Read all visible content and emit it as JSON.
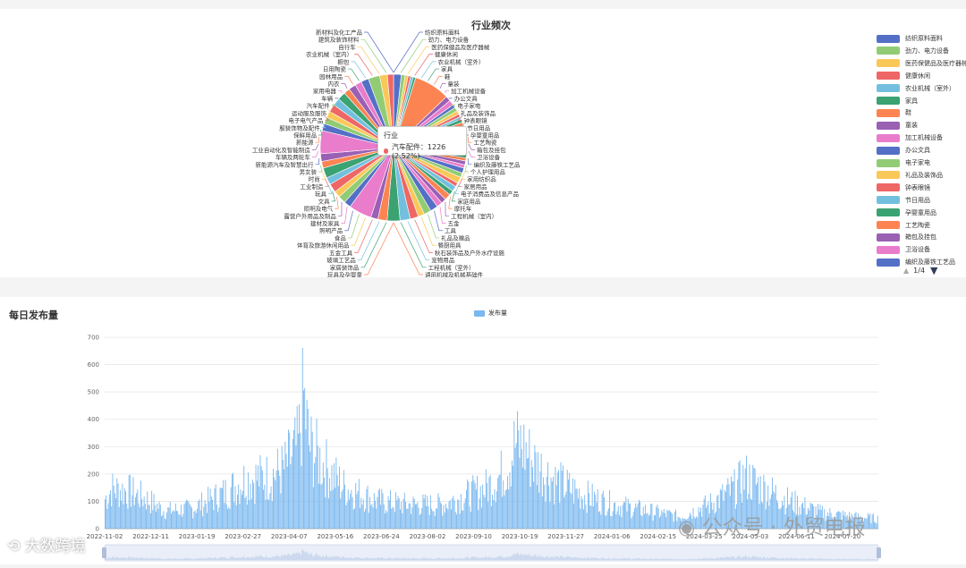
{
  "pie": {
    "title": "行业频次",
    "tooltip": {
      "title": "行业",
      "line": "汽车配件：1226 (2.52%)"
    },
    "legend_page": "1/4",
    "legend_items": [
      {
        "label": "纺织原料面料",
        "color": "#5470c6"
      },
      {
        "label": "劲力、电力设备",
        "color": "#91cc75"
      },
      {
        "label": "医药保健品及医疗器械",
        "color": "#fac858"
      },
      {
        "label": "健康休闲",
        "color": "#ee6666"
      },
      {
        "label": "农业机械（室外）",
        "color": "#73c0de"
      },
      {
        "label": "家具",
        "color": "#3ba272"
      },
      {
        "label": "鞋",
        "color": "#fc8452"
      },
      {
        "label": "童装",
        "color": "#9a60b4"
      },
      {
        "label": "加工机械设备",
        "color": "#ea7ccc"
      },
      {
        "label": "办公文具",
        "color": "#5470c6"
      },
      {
        "label": "电子家电",
        "color": "#91cc75"
      },
      {
        "label": "礼品及装饰品",
        "color": "#fac858"
      },
      {
        "label": "钟表眼镜",
        "color": "#ee6666"
      },
      {
        "label": "节日用品",
        "color": "#73c0de"
      },
      {
        "label": "孕婴童用品",
        "color": "#3ba272"
      },
      {
        "label": "工艺陶瓷",
        "color": "#fc8452"
      },
      {
        "label": "箱包及挂包",
        "color": "#9a60b4"
      },
      {
        "label": "卫浴设备",
        "color": "#ea7ccc"
      },
      {
        "label": "编织及藤铁工艺品",
        "color": "#5470c6"
      }
    ],
    "left_labels": [
      "新材料及化工产品",
      "建筑及装饰材料",
      "自行车",
      "农业机械（室内）",
      "橱包",
      "日用陶瓷",
      "园林用品",
      "内衣",
      "家用电器",
      "车辆",
      "汽车配件",
      "运动服及服饰",
      "电子电气产品",
      "服装饰物及配件",
      "保鲜用品",
      "新能源",
      "工业自动化及智能制造",
      "车辆及两轮车",
      "新能源汽车及智慧出行",
      "男女装",
      "时尚",
      "工业制造",
      "玩具",
      "文具",
      "照明及电气",
      "露营户外用品及制品",
      "建材及家具",
      "照明产品",
      "食品",
      "体育及旅游休闲用品",
      "五金工具",
      "玻璃工艺品",
      "家居装饰品",
      "玩具及孕婴童"
    ],
    "right_labels": [
      "纺织原料面料",
      "劲力、电力设备",
      "医药保健品及医疗器械",
      "健康休闲",
      "农业机械（室外）",
      "家具",
      "鞋",
      "童装",
      "加工机械设备",
      "办公文具",
      "电子家电",
      "礼品及装饰品",
      "钟表眼镜",
      "节日用品",
      "孕婴童用品",
      "工艺陶瓷",
      "箱包及挂包",
      "卫浴设备",
      "编织及藤铁工艺品",
      "个人护理用品",
      "家用纺织品",
      "家居用品",
      "电子消费品及信息产品",
      "家庭用品",
      "摩托车",
      "工程机械（室内）",
      "五金",
      "工具",
      "礼品及赠品",
      "餐厨用具",
      "秋石装饰品及户外水疗设施",
      "宠物用品",
      "工程机械（室外）",
      "通用机械及机械基础件"
    ]
  },
  "chart_data": {
    "type": "bar",
    "title": "每日发布量",
    "legend": [
      "发布量"
    ],
    "series": [
      {
        "name": "发布量",
        "color": "#7ab8ef"
      }
    ],
    "ylim": [
      0,
      700
    ],
    "yticks": [
      "0",
      "100",
      "200",
      "300",
      "400",
      "500",
      "600",
      "700"
    ],
    "xticks": [
      "2022-11-02",
      "2022-12-11",
      "2023-01-19",
      "2023-02-27",
      "2023-04-07",
      "2023-05-16",
      "2023-06-24",
      "2023-08-02",
      "2023-09-10",
      "2023-10-19",
      "2023-11-27",
      "2024-01-06",
      "2024-02-15",
      "2024-03-25",
      "2024-05-03",
      "2024-06-11",
      "2024-07-20"
    ],
    "profile": [
      {
        "x": 0,
        "y": 150
      },
      {
        "x": 6,
        "y": 200
      },
      {
        "x": 20,
        "y": 190
      },
      {
        "x": 38,
        "y": 150
      },
      {
        "x": 55,
        "y": 90
      },
      {
        "x": 80,
        "y": 100
      },
      {
        "x": 110,
        "y": 180
      },
      {
        "x": 130,
        "y": 250
      },
      {
        "x": 150,
        "y": 260
      },
      {
        "x": 165,
        "y": 300
      },
      {
        "x": 178,
        "y": 420
      },
      {
        "x": 183,
        "y": 660
      },
      {
        "x": 188,
        "y": 420
      },
      {
        "x": 200,
        "y": 330
      },
      {
        "x": 220,
        "y": 210
      },
      {
        "x": 250,
        "y": 140
      },
      {
        "x": 280,
        "y": 120
      },
      {
        "x": 310,
        "y": 120
      },
      {
        "x": 330,
        "y": 160
      },
      {
        "x": 350,
        "y": 200
      },
      {
        "x": 365,
        "y": 270
      },
      {
        "x": 372,
        "y": 330
      },
      {
        "x": 378,
        "y": 425
      },
      {
        "x": 385,
        "y": 415
      },
      {
        "x": 395,
        "y": 330
      },
      {
        "x": 415,
        "y": 240
      },
      {
        "x": 440,
        "y": 170
      },
      {
        "x": 470,
        "y": 120
      },
      {
        "x": 500,
        "y": 90
      },
      {
        "x": 530,
        "y": 60
      },
      {
        "x": 560,
        "y": 130
      },
      {
        "x": 580,
        "y": 200
      },
      {
        "x": 590,
        "y": 260
      },
      {
        "x": 605,
        "y": 210
      },
      {
        "x": 630,
        "y": 140
      },
      {
        "x": 660,
        "y": 80
      },
      {
        "x": 690,
        "y": 60
      },
      {
        "x": 712,
        "y": 50
      }
    ]
  },
  "watermarks": {
    "logo_text": "大数跨境",
    "right_text": "公众号 · 外贸电报"
  }
}
